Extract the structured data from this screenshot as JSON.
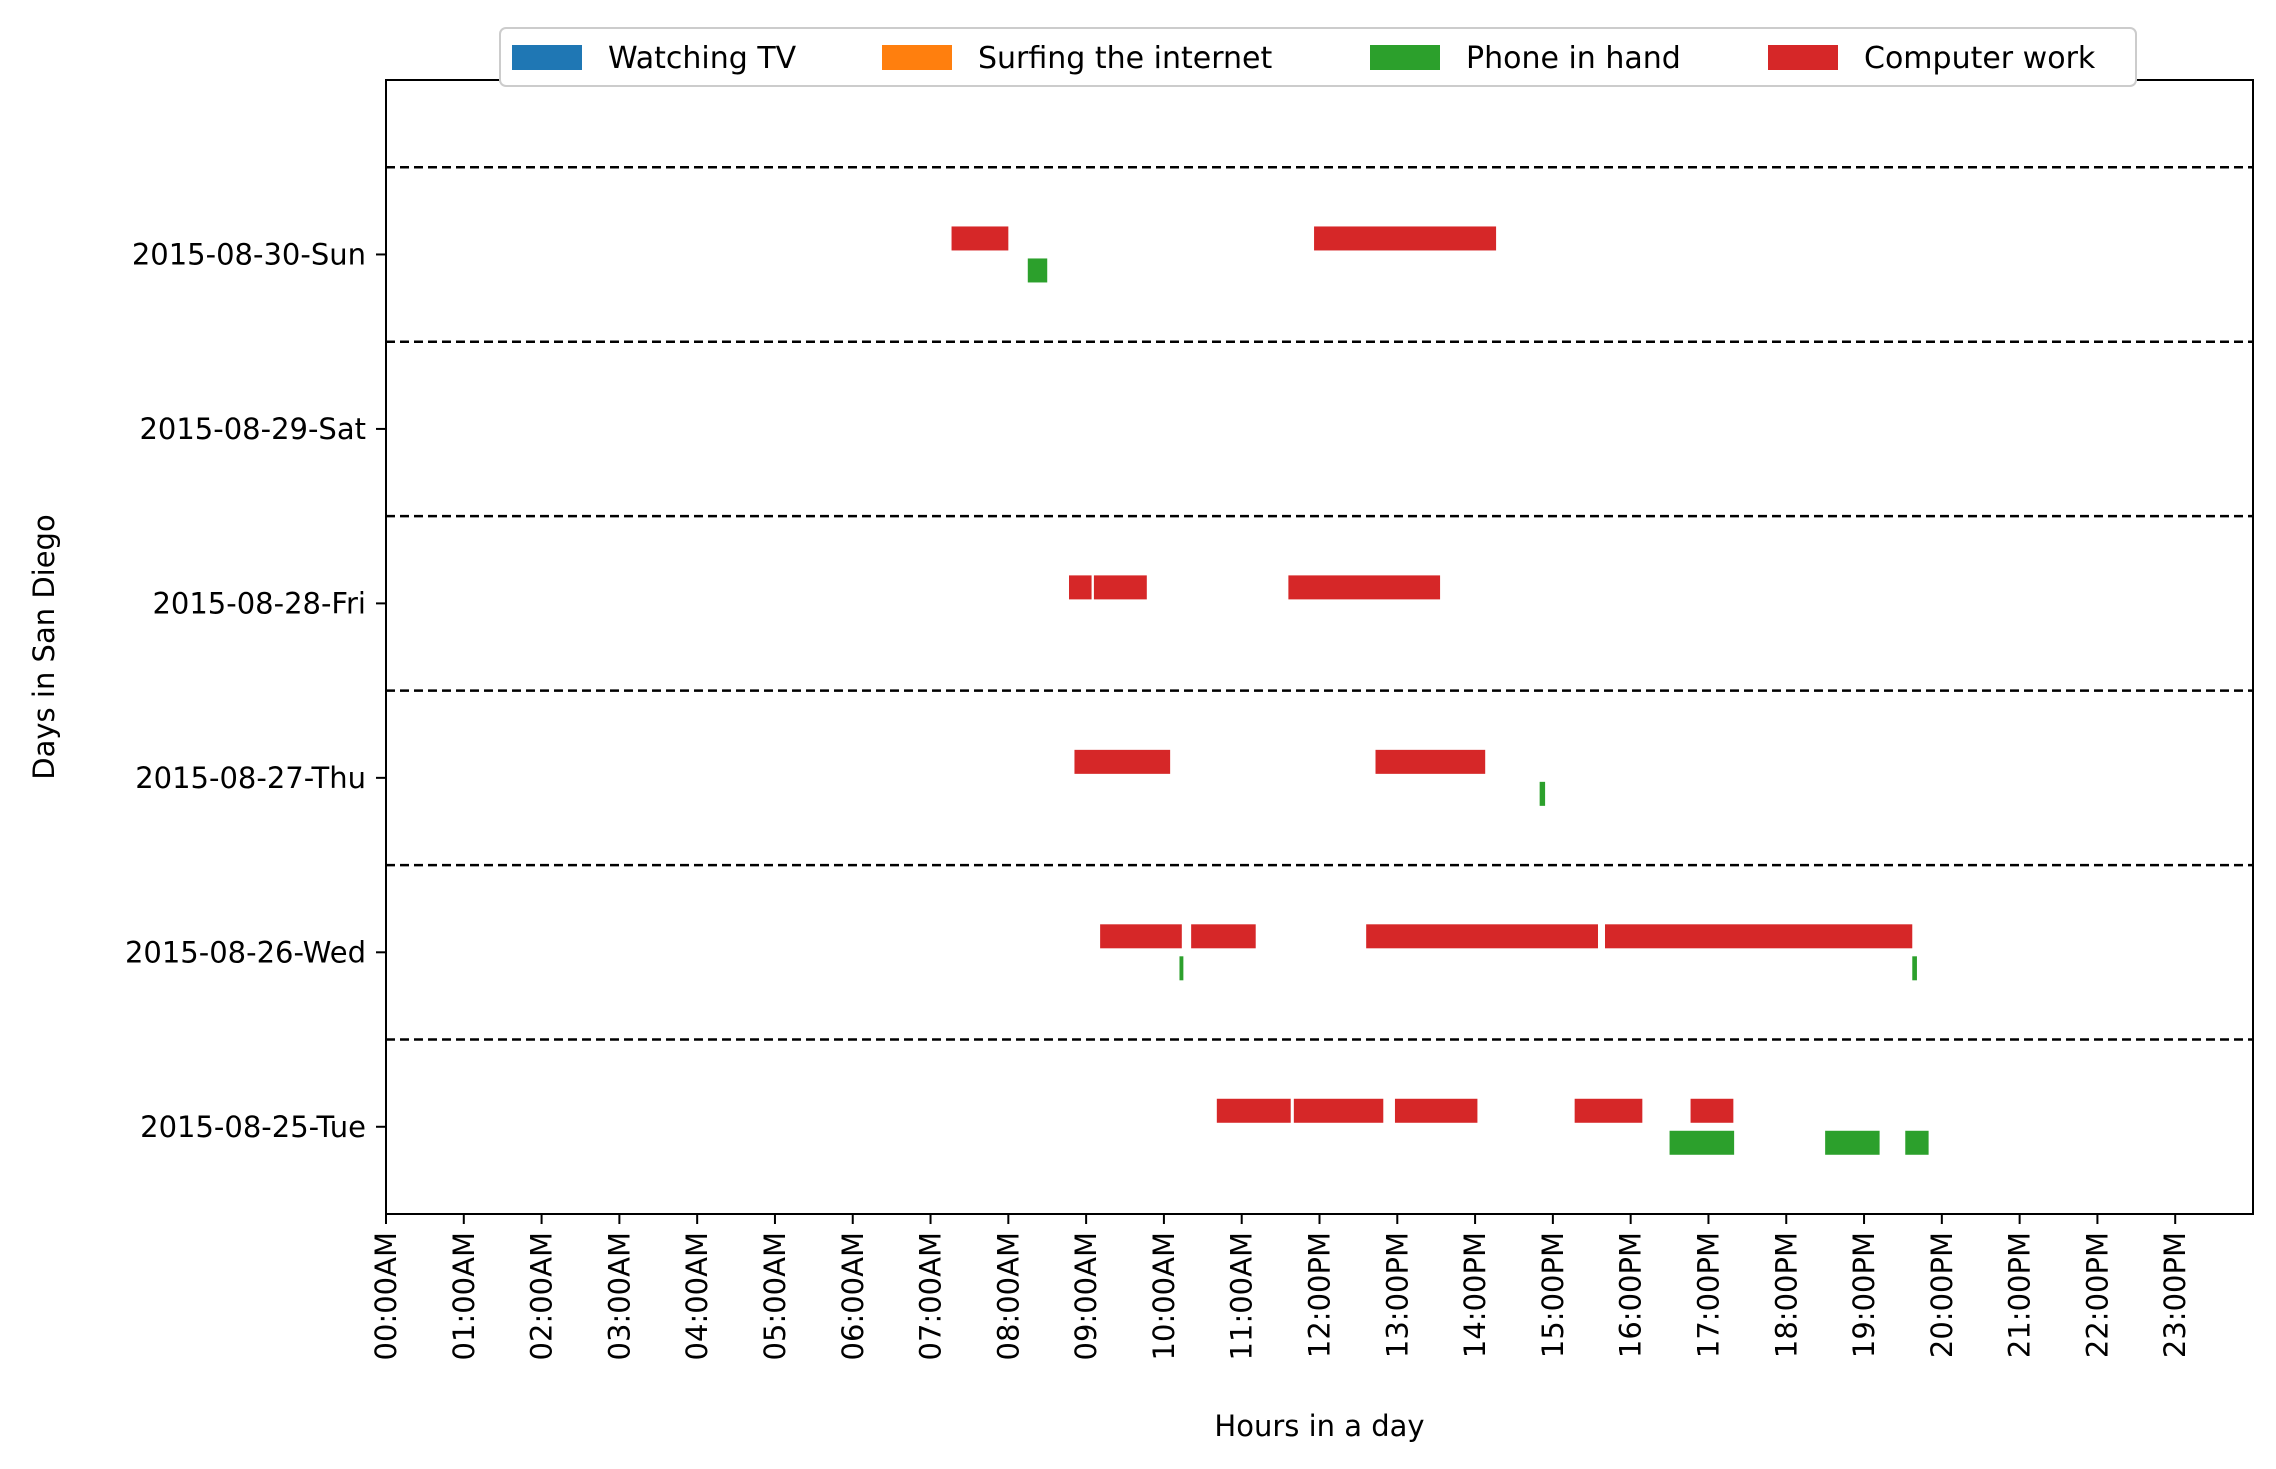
{
  "chart_data": {
    "type": "timeline",
    "xlabel": "Hours in a day",
    "ylabel": "Days in San Diego",
    "xlim": [
      0,
      24
    ],
    "x_tick_labels": [
      "00:00AM",
      "01:00AM",
      "02:00AM",
      "03:00AM",
      "04:00AM",
      "05:00AM",
      "06:00AM",
      "07:00AM",
      "08:00AM",
      "09:00AM",
      "10:00AM",
      "11:00AM",
      "12:00PM",
      "13:00PM",
      "14:00PM",
      "15:00PM",
      "16:00PM",
      "17:00PM",
      "18:00PM",
      "19:00PM",
      "20:00PM",
      "21:00PM",
      "22:00PM",
      "23:00PM"
    ],
    "days": [
      "2015-08-30-Sun",
      "2015-08-29-Sat",
      "2015-08-28-Fri",
      "2015-08-27-Thu",
      "2015-08-26-Wed",
      "2015-08-25-Tue"
    ],
    "grid": false,
    "day_separators": "dashed",
    "legend_position": "top-center",
    "series": [
      {
        "name": "Watching TV",
        "color": "#1f77b4",
        "intervals": []
      },
      {
        "name": "Surfing the internet",
        "color": "#ff7f0e",
        "intervals": []
      },
      {
        "name": "Phone in hand",
        "color": "#2ca02c",
        "intervals": [
          {
            "day": "2015-08-30-Sun",
            "start": 8.25,
            "end": 8.5
          },
          {
            "day": "2015-08-27-Thu",
            "start": 14.83,
            "end": 14.9
          },
          {
            "day": "2015-08-26-Wed",
            "start": 10.2,
            "end": 10.25
          },
          {
            "day": "2015-08-26-Wed",
            "start": 19.62,
            "end": 19.68
          },
          {
            "day": "2015-08-25-Tue",
            "start": 16.5,
            "end": 17.33
          },
          {
            "day": "2015-08-25-Tue",
            "start": 18.5,
            "end": 19.2
          },
          {
            "day": "2015-08-25-Tue",
            "start": 19.53,
            "end": 19.83
          }
        ]
      },
      {
        "name": "Computer work",
        "color": "#d62728",
        "intervals": [
          {
            "day": "2015-08-30-Sun",
            "start": 7.27,
            "end": 8.0
          },
          {
            "day": "2015-08-30-Sun",
            "start": 11.93,
            "end": 14.27
          },
          {
            "day": "2015-08-28-Fri",
            "start": 8.78,
            "end": 9.07
          },
          {
            "day": "2015-08-28-Fri",
            "start": 9.1,
            "end": 9.78
          },
          {
            "day": "2015-08-28-Fri",
            "start": 11.6,
            "end": 13.55
          },
          {
            "day": "2015-08-27-Thu",
            "start": 8.85,
            "end": 10.08
          },
          {
            "day": "2015-08-27-Thu",
            "start": 12.72,
            "end": 14.13
          },
          {
            "day": "2015-08-26-Wed",
            "start": 9.18,
            "end": 10.23
          },
          {
            "day": "2015-08-26-Wed",
            "start": 10.35,
            "end": 11.18
          },
          {
            "day": "2015-08-26-Wed",
            "start": 12.6,
            "end": 15.58
          },
          {
            "day": "2015-08-26-Wed",
            "start": 15.67,
            "end": 19.62
          },
          {
            "day": "2015-08-25-Tue",
            "start": 10.68,
            "end": 11.63
          },
          {
            "day": "2015-08-25-Tue",
            "start": 11.67,
            "end": 12.82
          },
          {
            "day": "2015-08-25-Tue",
            "start": 12.97,
            "end": 14.03
          },
          {
            "day": "2015-08-25-Tue",
            "start": 15.28,
            "end": 16.15
          },
          {
            "day": "2015-08-25-Tue",
            "start": 16.77,
            "end": 17.32
          }
        ]
      }
    ]
  }
}
